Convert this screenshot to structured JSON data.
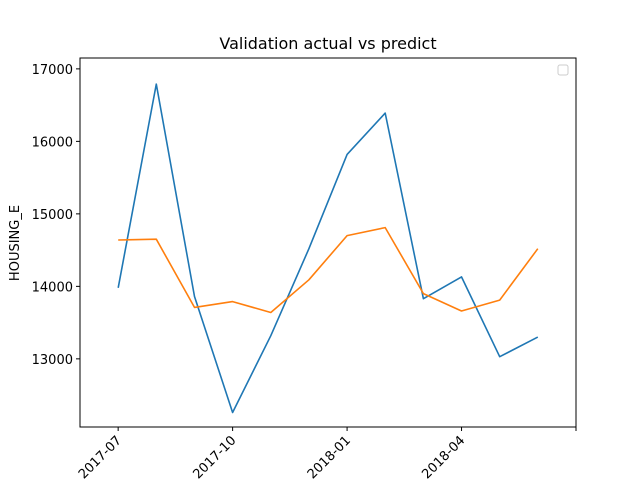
{
  "chart_data": {
    "type": "line",
    "title": "Validation actual vs predict",
    "xlabel": "",
    "ylabel": "HOUSING_E",
    "x": [
      "2017-07",
      "2017-08",
      "2017-09",
      "2017-10",
      "2017-11",
      "2017-12",
      "2018-01",
      "2018-02",
      "2018-03",
      "2018-04",
      "2018-05",
      "2018-06"
    ],
    "x_ticks": [
      "2017-07",
      "2017-10",
      "2018-01",
      "2018-04",
      ""
    ],
    "xlim": [
      "2017-06",
      "2018-07"
    ],
    "y_ticks": [
      13000,
      14000,
      15000,
      16000,
      17000
    ],
    "ylim": [
      12060,
      17150
    ],
    "grid": false,
    "legend": "top-right",
    "legend_entries": [],
    "series": [
      {
        "color": "#1f77b4",
        "values": [
          13980,
          16790,
          13860,
          12260,
          13320,
          14520,
          15820,
          16390,
          13830,
          14130,
          13030,
          13300
        ]
      },
      {
        "color": "#ff7f0e",
        "values": [
          14640,
          14650,
          13710,
          13790,
          13640,
          14090,
          14700,
          14810,
          13900,
          13660,
          13810,
          14520
        ]
      }
    ]
  }
}
